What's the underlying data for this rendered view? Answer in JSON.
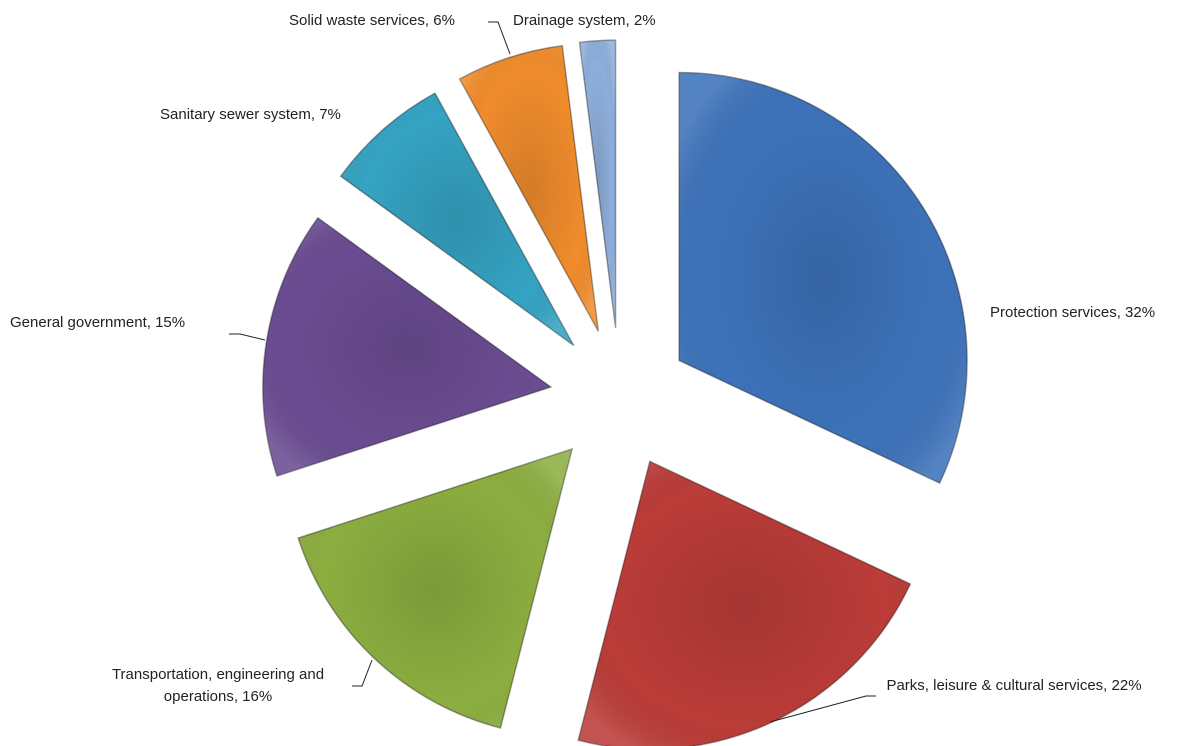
{
  "chart_data": {
    "type": "pie",
    "categories": [
      "Protection services, 32%",
      "Parks, leisure & cultural services, 22%",
      "Transportation, engineering and operations, 16%",
      "General government, 15%",
      "Sanitary sewer system, 7%",
      "Solid waste services, 6%",
      "Drainage system, 2%"
    ],
    "values": [
      32,
      22,
      16,
      15,
      7,
      6,
      2
    ],
    "colors": [
      "#3d72ba",
      "#bb3c38",
      "#8cae40",
      "#6b4c92",
      "#35a3c3",
      "#f08c2c",
      "#8eaedb"
    ]
  }
}
